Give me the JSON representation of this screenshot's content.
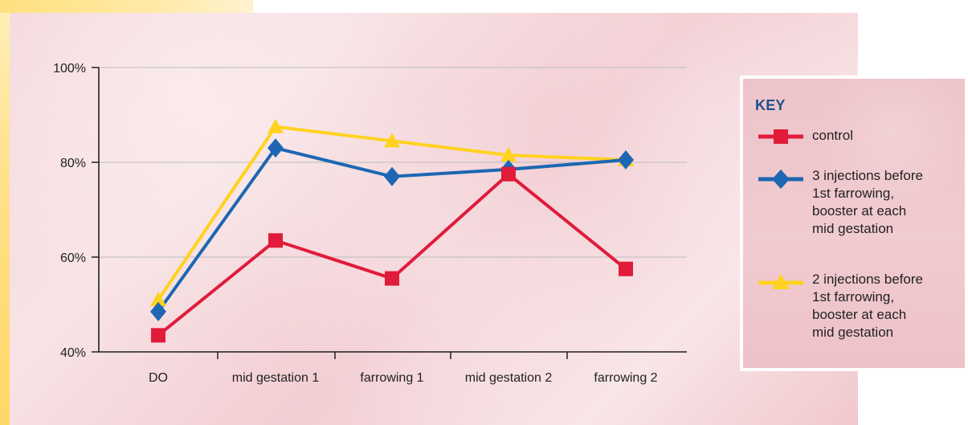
{
  "chart_data": {
    "type": "line",
    "categories": [
      "DO",
      "mid gestation 1",
      "farrowing 1",
      "mid gestation 2",
      "farrowing 2"
    ],
    "y_ticks": [
      {
        "value": 100,
        "label": "100%"
      },
      {
        "value": 80,
        "label": "80%"
      },
      {
        "value": 60,
        "label": "60%"
      },
      {
        "value": 40,
        "label": "40%"
      }
    ],
    "ylim": [
      40,
      100
    ],
    "grid": true,
    "legend": {
      "title": "KEY",
      "placement": "right"
    },
    "series": [
      {
        "name": "control",
        "label": "control",
        "values": [
          43.5,
          63.5,
          55.5,
          77.5,
          57.5
        ],
        "color": "#e11b3a",
        "marker": "square"
      },
      {
        "name": "3 injections before 1st farrowing, booster at each mid gestation",
        "label": "3 injections before\n1st farrowing,\nbooster at each\nmid gestation",
        "values": [
          48.5,
          83.0,
          77.0,
          78.5,
          80.5
        ],
        "color": "#1d67b2",
        "marker": "diamond"
      },
      {
        "name": "2 injections before 1st farrowing, booster at each mid gestation",
        "label": "2 injections before\n1st farrowing,\nbooster at each\nmid gestation",
        "values": [
          51.0,
          87.5,
          84.5,
          81.5,
          80.5
        ],
        "color": "#ffd21f",
        "marker": "triangle"
      }
    ]
  }
}
